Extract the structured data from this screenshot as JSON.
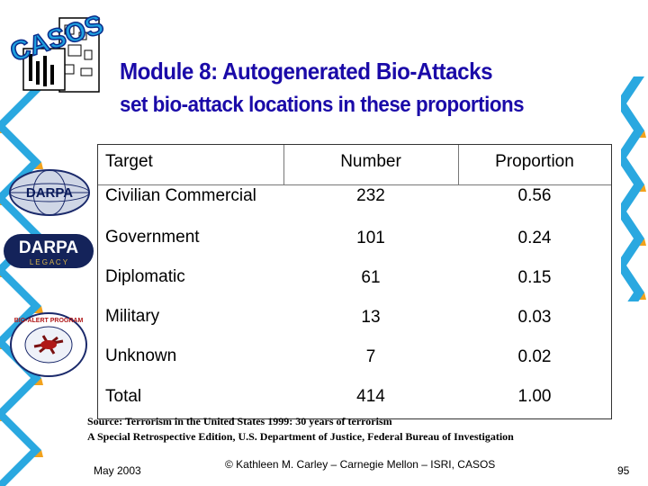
{
  "logo_text": "CASOS",
  "title": "Module 8: Autogenerated Bio-Attacks",
  "subtitle": "set bio-attack locations in these proportions",
  "emblems": {
    "darpa_globe": "DARPA",
    "darpa_legacy_top": "DARPA",
    "darpa_legacy_bottom": "L E G A C Y",
    "bioalert": "BIO-ALERT PROGRAM"
  },
  "table": {
    "headers": {
      "target": "Target",
      "number": "Number",
      "proportion": "Proportion"
    },
    "rows": [
      {
        "target": "Civilian Commercial",
        "number": "232",
        "proportion": "0.56"
      },
      {
        "target": "Government",
        "number": "101",
        "proportion": "0.24"
      },
      {
        "target": "Diplomatic",
        "number": "61",
        "proportion": "0.15"
      },
      {
        "target": "Military",
        "number": "13",
        "proportion": "0.03"
      },
      {
        "target": "Unknown",
        "number": "7",
        "proportion": "0.02"
      },
      {
        "target": "Total",
        "number": "414",
        "proportion": "1.00"
      }
    ]
  },
  "source": {
    "line1": "Source:  Terrorism in the United States 1999: 30 years of terrorism",
    "line2": "A Special Retrospective Edition, U.S. Department of Justice, Federal Bureau of Investigation"
  },
  "footer": {
    "date": "May 2003",
    "copyright": "© Kathleen M. Carley – Carnegie Mellon – ISRI, CASOS",
    "page_number": "95"
  },
  "colors": {
    "title": "#1a0aa8",
    "zigzag_cyan": "#2aa8e0",
    "zigzag_orange": "#f2a21c"
  }
}
